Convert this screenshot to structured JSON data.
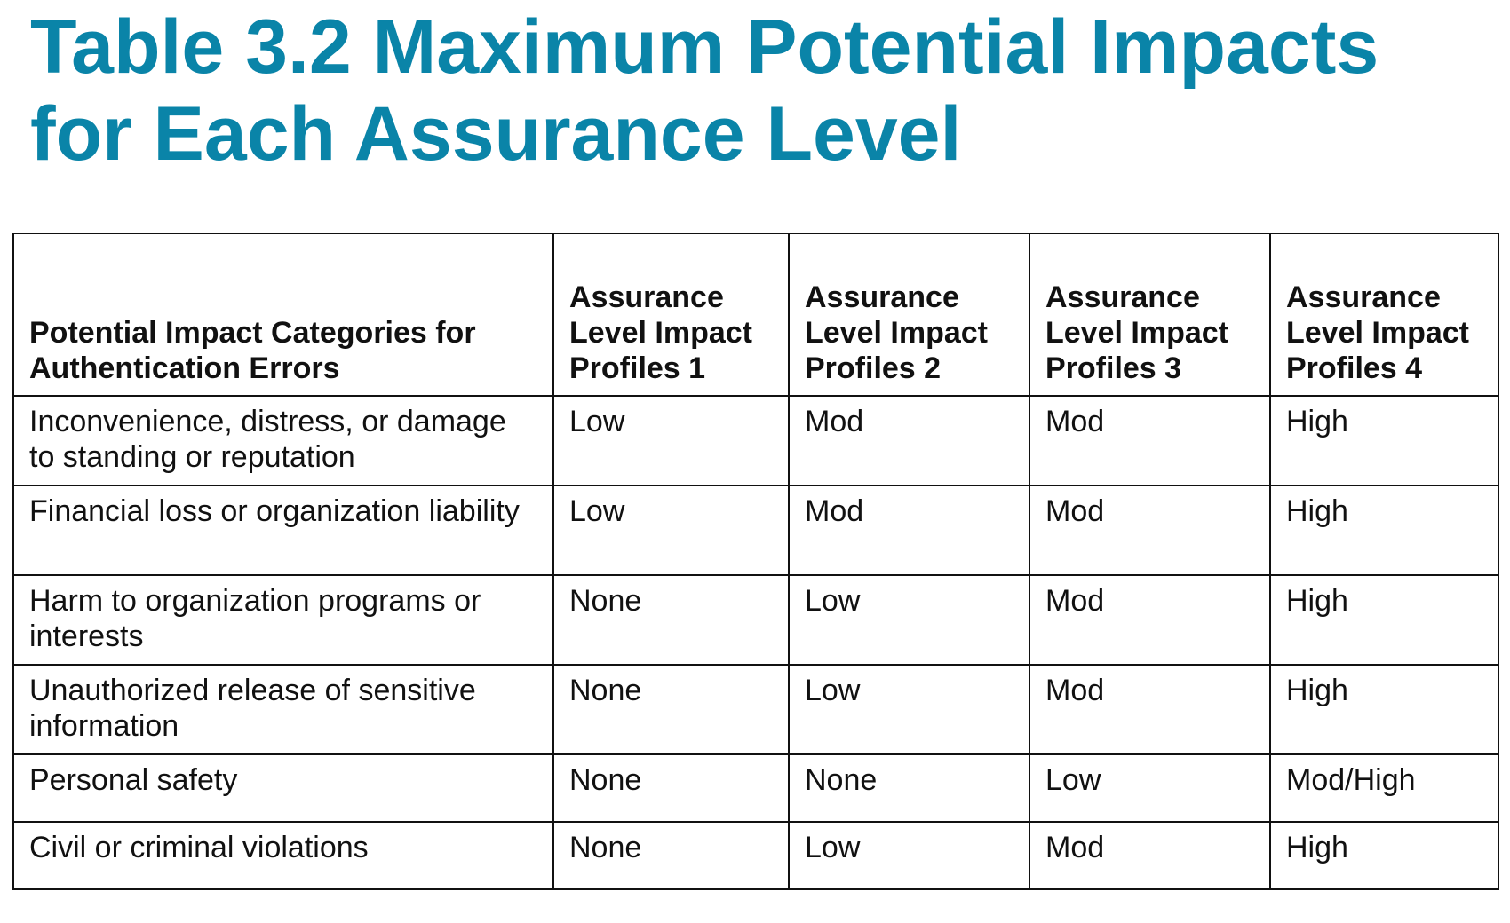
{
  "title": "Table 3.2 Maximum Potential Impacts for Each Assurance Level",
  "table": {
    "headers": [
      "Potential Impact Categories for Authentication Errors",
      "Assurance Level Impact Profiles 1",
      "Assurance Level Impact Profiles 2",
      "Assurance Level Impact Profiles 3",
      "Assurance Level Impact Profiles 4"
    ],
    "rows": [
      [
        "Inconvenience, distress, or damage to standing or reputation",
        "Low",
        "Mod",
        "Mod",
        "High"
      ],
      [
        "Financial loss or organization liability",
        "Low",
        "Mod",
        "Mod",
        "High"
      ],
      [
        "Harm to organization programs or interests",
        "None",
        "Low",
        "Mod",
        "High"
      ],
      [
        "Unauthorized release of sensitive information",
        "None",
        "Low",
        "Mod",
        "High"
      ],
      [
        "Personal safety",
        "None",
        "None",
        "Low",
        "Mod/High"
      ],
      [
        "Civil or criminal violations",
        "None",
        "Low",
        "Mod",
        "High"
      ]
    ]
  },
  "colors": {
    "title": "#0a84a8",
    "text": "#111111",
    "border": "#111111"
  }
}
